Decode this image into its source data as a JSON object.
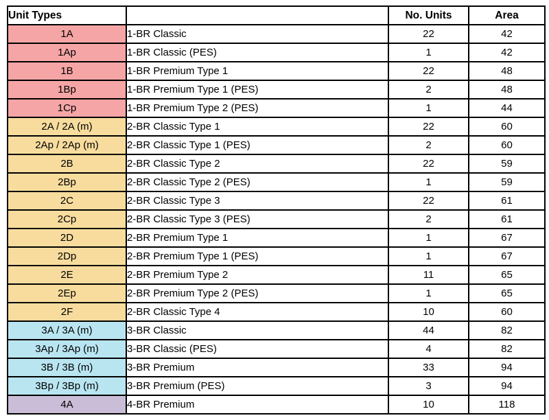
{
  "chart_data": {
    "type": "table",
    "title": "Unit Types",
    "columns": [
      "Unit Types",
      "",
      "No. Units",
      "Area"
    ],
    "rows": [
      {
        "code": "1A",
        "description": "1-BR Classic",
        "no_units": 22,
        "area": 42,
        "group": "1-br"
      },
      {
        "code": "1Ap",
        "description": "1-BR Classic (PES)",
        "no_units": 1,
        "area": 42,
        "group": "1-br"
      },
      {
        "code": "1B",
        "description": "1-BR Premium Type 1",
        "no_units": 22,
        "area": 48,
        "group": "1-br"
      },
      {
        "code": "1Bp",
        "description": "1-BR Premium Type 1 (PES)",
        "no_units": 2,
        "area": 48,
        "group": "1-br"
      },
      {
        "code": "1Cp",
        "description": "1-BR Premium Type 2 (PES)",
        "no_units": 1,
        "area": 44,
        "group": "1-br"
      },
      {
        "code": "2A / 2A (m)",
        "description": "2-BR Classic Type 1",
        "no_units": 22,
        "area": 60,
        "group": "2-br"
      },
      {
        "code": "2Ap / 2Ap (m)",
        "description": "2-BR Classic Type 1 (PES)",
        "no_units": 2,
        "area": 60,
        "group": "2-br"
      },
      {
        "code": "2B",
        "description": "2-BR Classic Type 2",
        "no_units": 22,
        "area": 59,
        "group": "2-br"
      },
      {
        "code": "2Bp",
        "description": "2-BR Classic Type 2 (PES)",
        "no_units": 1,
        "area": 59,
        "group": "2-br"
      },
      {
        "code": "2C",
        "description": "2-BR Classic Type 3",
        "no_units": 22,
        "area": 61,
        "group": "2-br"
      },
      {
        "code": "2Cp",
        "description": "2-BR Classic Type 3 (PES)",
        "no_units": 2,
        "area": 61,
        "group": "2-br"
      },
      {
        "code": "2D",
        "description": "2-BR Premium Type 1",
        "no_units": 1,
        "area": 67,
        "group": "2-br"
      },
      {
        "code": "2Dp",
        "description": "2-BR Premium Type 1 (PES)",
        "no_units": 1,
        "area": 67,
        "group": "2-br"
      },
      {
        "code": "2E",
        "description": "2-BR Premium Type 2",
        "no_units": 11,
        "area": 65,
        "group": "2-br"
      },
      {
        "code": "2Ep",
        "description": "2-BR Premium Type 2 (PES)",
        "no_units": 1,
        "area": 65,
        "group": "2-br"
      },
      {
        "code": "2F",
        "description": "2-BR Classic Type 4",
        "no_units": 10,
        "area": 60,
        "group": "2-br"
      },
      {
        "code": "3A / 3A (m)",
        "description": "3-BR Classic",
        "no_units": 44,
        "area": 82,
        "group": "3-br"
      },
      {
        "code": "3Ap / 3Ap (m)",
        "description": "3-BR Classic (PES)",
        "no_units": 4,
        "area": 82,
        "group": "3-br"
      },
      {
        "code": "3B / 3B (m)",
        "description": "3-BR Premium",
        "no_units": 33,
        "area": 94,
        "group": "3-br"
      },
      {
        "code": "3Bp / 3Bp (m)",
        "description": "3-BR Premium (PES)",
        "no_units": 3,
        "area": 94,
        "group": "3-br"
      },
      {
        "code": "4A",
        "description": "4-BR Premium",
        "no_units": 10,
        "area": 118,
        "group": "4-br"
      }
    ],
    "group_colors": {
      "1-br": "#F5A5A5",
      "2-br": "#F7DC9E",
      "3-br": "#B9E5F1",
      "4-br": "#CABDD7"
    },
    "border_color": "#000000",
    "header_background": "#FFFFFF"
  }
}
